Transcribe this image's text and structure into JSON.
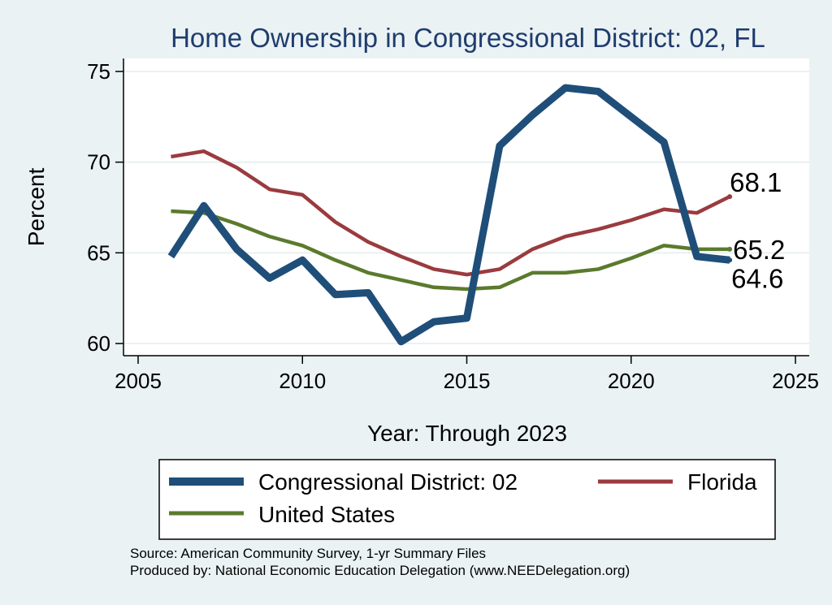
{
  "chart_data": {
    "type": "line",
    "title": "Home Ownership in Congressional District:  02, FL",
    "xlabel": "Year: Through 2023",
    "ylabel": "Percent",
    "xlim": [
      2005,
      2025
    ],
    "ylim": [
      60,
      75
    ],
    "xticks": [
      2005,
      2010,
      2015,
      2020,
      2025
    ],
    "yticks": [
      60,
      65,
      70,
      75
    ],
    "grid": true,
    "legend_position": "bottom",
    "x": [
      2006,
      2007,
      2008,
      2009,
      2010,
      2011,
      2012,
      2013,
      2014,
      2015,
      2016,
      2017,
      2018,
      2019,
      2020,
      2021,
      2022,
      2023
    ],
    "series": [
      {
        "name": "Congressional District:  02",
        "color": "#1f4e79",
        "values": [
          64.8,
          67.6,
          65.2,
          63.6,
          64.6,
          62.7,
          62.8,
          60.1,
          61.2,
          61.4,
          70.9,
          72.6,
          74.1,
          73.9,
          72.5,
          71.1,
          64.8,
          64.6
        ],
        "end_label": "64.6"
      },
      {
        "name": "Florida",
        "color": "#9a3b3f",
        "values": [
          70.3,
          70.6,
          69.7,
          68.5,
          68.2,
          66.7,
          65.6,
          64.8,
          64.1,
          63.8,
          64.1,
          65.2,
          65.9,
          66.3,
          66.8,
          67.4,
          67.2,
          68.1
        ],
        "end_label": "68.1"
      },
      {
        "name": "United States",
        "color": "#5b7a2d",
        "values": [
          67.3,
          67.2,
          66.6,
          65.9,
          65.4,
          64.6,
          63.9,
          63.5,
          63.1,
          63.0,
          63.1,
          63.9,
          63.9,
          64.1,
          64.7,
          65.4,
          65.2,
          65.2
        ],
        "end_label": "65.2"
      }
    ]
  },
  "source_note": "Source: American Community Survey, 1-yr Summary Files",
  "producer_note": "Produced by: National Economic Education Delegation (www.NEEDelegation.org)"
}
